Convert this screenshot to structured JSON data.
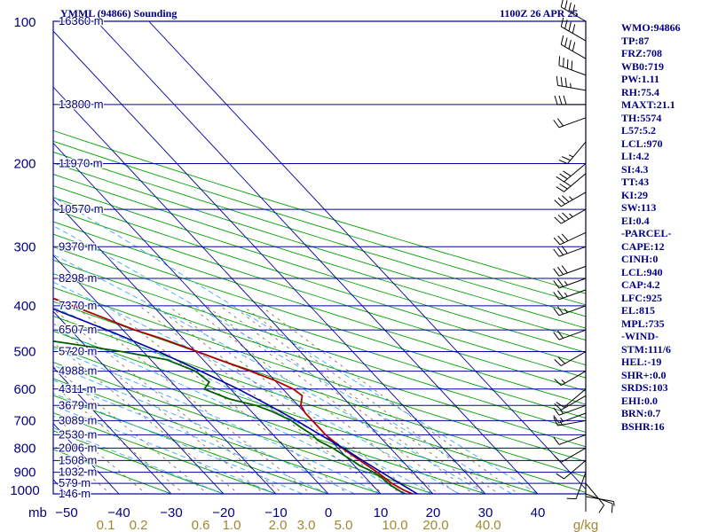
{
  "header": {
    "station": "YMML (94866) Sounding",
    "time": "1100Z 26 APR 25"
  },
  "indices": [
    "WMO:94866",
    "TP:87",
    "FRZ:708",
    "WB0:719",
    "PW:1.11",
    "RH:75.4",
    "MAXT:21.1",
    "TH:5574",
    "L57:5.2",
    "LCL:970",
    "LI:4.2",
    "SI:4.3",
    "TT:43",
    "KI:29",
    "SW:113",
    "EI:0.4",
    "-PARCEL-",
    "CAPE:12",
    "CINH:0",
    "LCL:940",
    "CAP:4.2",
    "LFC:925",
    "EL:815",
    "MPL:735",
    "-WIND-",
    "STM:111/6",
    "HEL:-19",
    "SHR+:0.0",
    "SRDS:103",
    "EHI:0.0",
    "BRN:0.7",
    "BSHR:16"
  ],
  "chart_data": {
    "type": "line",
    "title": "YMML (94866) Sounding",
    "xlabel": "",
    "ylabel": "mb",
    "xlim": [
      -50,
      50
    ],
    "ylim": [
      1000,
      100
    ],
    "x_unit_label": "",
    "pressure_ticks": [
      100,
      200,
      300,
      400,
      500,
      600,
      700,
      800,
      900,
      1000
    ],
    "temp_ticks": [
      -50,
      -40,
      -30,
      -20,
      -10,
      0,
      10,
      20,
      30,
      40
    ],
    "mixing_ratio_ticks": [
      "0.1",
      "0.2",
      "0.6",
      "1.0",
      "2.0",
      "3.0",
      "5.0",
      "10.0",
      "20.0",
      "40.0"
    ],
    "mixing_ratio_unit": "g/kg",
    "height_labels": [
      {
        "p": 100,
        "label": "16360 m"
      },
      {
        "p": 150,
        "label": "13800 m"
      },
      {
        "p": 200,
        "label": "11970 m"
      },
      {
        "p": 250,
        "label": "10570 m"
      },
      {
        "p": 300,
        "label": "9370 m"
      },
      {
        "p": 350,
        "label": "8298 m"
      },
      {
        "p": 400,
        "label": "7370 m"
      },
      {
        "p": 450,
        "label": "6507 m"
      },
      {
        "p": 500,
        "label": "5720 m"
      },
      {
        "p": 550,
        "label": "4988 m"
      },
      {
        "p": 600,
        "label": "4311 m"
      },
      {
        "p": 650,
        "label": "3679 m"
      },
      {
        "p": 700,
        "label": "3089 m"
      },
      {
        "p": 750,
        "label": "2530 m"
      },
      {
        "p": 800,
        "label": "2006 m"
      },
      {
        "p": 850,
        "label": "1508 m"
      },
      {
        "p": 900,
        "label": "1032 m"
      },
      {
        "p": 950,
        "label": "579 m"
      },
      {
        "p": 1000,
        "label": "146 m"
      }
    ],
    "series": [
      {
        "color": "#b00000",
        "points": [
          [
            1013,
            18.6
          ],
          [
            1000,
            16.0
          ],
          [
            980,
            15.0
          ],
          [
            950,
            14.0
          ],
          [
            900,
            13.2
          ],
          [
            850,
            12.0
          ],
          [
            800,
            10.8
          ],
          [
            750,
            10.0
          ],
          [
            700,
            10.0
          ],
          [
            675,
            10.0
          ],
          [
            650,
            10.5
          ],
          [
            620,
            12.5
          ],
          [
            600,
            12.0
          ],
          [
            575,
            10.0
          ],
          [
            550,
            7.0
          ],
          [
            520,
            3.0
          ],
          [
            500,
            0.4
          ],
          [
            470,
            -4.0
          ],
          [
            450,
            -7.7
          ],
          [
            400,
            -15.3
          ],
          [
            350,
            -24.0
          ],
          [
            300,
            -34.0
          ],
          [
            270,
            -41.0
          ],
          [
            250,
            -45.0
          ],
          [
            220,
            -51.5
          ],
          [
            200,
            -55.0
          ],
          [
            190,
            -55.0
          ],
          [
            180,
            -53.0
          ],
          [
            175,
            -51.0
          ],
          [
            170,
            -52.0
          ],
          [
            160,
            -48.5
          ],
          [
            150,
            -49.5
          ],
          [
            140,
            -49.0
          ],
          [
            130,
            -50.0
          ],
          [
            120,
            -51.5
          ],
          [
            110,
            -52.0
          ],
          [
            100,
            -53.0
          ]
        ]
      },
      {
        "color": "#006000",
        "points": [
          [
            1000,
            14.5
          ],
          [
            960,
            13.5
          ],
          [
            920,
            13.0
          ],
          [
            900,
            12.5
          ],
          [
            870,
            11.0
          ],
          [
            850,
            10.5
          ],
          [
            800,
            9.0
          ],
          [
            770,
            7.5
          ],
          [
            750,
            7.5
          ],
          [
            720,
            6.5
          ],
          [
            700,
            6.0
          ],
          [
            670,
            4.0
          ],
          [
            650,
            2.0
          ],
          [
            630,
            -2.0
          ],
          [
            600,
            -5.0
          ],
          [
            580,
            -2.8
          ],
          [
            550,
            -3.5
          ],
          [
            520,
            -7.0
          ],
          [
            500,
            -14.0
          ],
          [
            480,
            -23.0
          ],
          [
            450,
            -38.0
          ],
          [
            420,
            -41.0
          ],
          [
            400,
            -44.0
          ],
          [
            350,
            -51.0
          ],
          [
            320,
            -56.0
          ],
          [
            300,
            -61.0
          ],
          [
            280,
            -70.0
          ],
          [
            260,
            -71.0
          ],
          [
            240,
            -72.0
          ],
          [
            220,
            -72.0
          ],
          [
            210,
            -71.0
          ],
          [
            200,
            -74.0
          ],
          [
            190,
            -77.0
          ],
          [
            180,
            -79.0
          ],
          [
            170,
            -80.0
          ],
          [
            160,
            -81.0
          ],
          [
            150,
            -83.0
          ],
          [
            140,
            -85.0
          ],
          [
            130,
            -88.0
          ],
          [
            120,
            -92.0
          ],
          [
            110,
            -96.0
          ],
          [
            100,
            -100.0
          ]
        ]
      },
      {
        "color": "#0000a0",
        "points": [
          [
            1013,
            18.6
          ],
          [
            1000,
            17.0
          ],
          [
            950,
            15.5
          ],
          [
            900,
            14.0
          ],
          [
            850,
            12.5
          ],
          [
            800,
            11.0
          ],
          [
            750,
            9.0
          ],
          [
            700,
            7.0
          ],
          [
            650,
            4.5
          ],
          [
            600,
            1.5
          ],
          [
            550,
            -2.5
          ],
          [
            500,
            -7.0
          ],
          [
            450,
            -13.0
          ],
          [
            400,
            -20.5
          ],
          [
            350,
            -29.0
          ],
          [
            300,
            -39.0
          ],
          [
            250,
            -50.0
          ],
          [
            200,
            -63.0
          ],
          [
            150,
            -78.0
          ],
          [
            100,
            -98.0
          ]
        ]
      }
    ],
    "wind_barbs": [
      {
        "p": 1013,
        "dir": 100,
        "spd": 5
      },
      {
        "p": 1000,
        "dir": 110,
        "spd": 10
      },
      {
        "p": 950,
        "dir": 140,
        "spd": 10
      },
      {
        "p": 900,
        "dir": 200,
        "spd": 10
      },
      {
        "p": 850,
        "dir": 230,
        "spd": 10
      },
      {
        "p": 800,
        "dir": 240,
        "spd": 10
      },
      {
        "p": 750,
        "dir": 250,
        "spd": 10
      },
      {
        "p": 700,
        "dir": 260,
        "spd": 15
      },
      {
        "p": 675,
        "dir": 250,
        "spd": 15
      },
      {
        "p": 650,
        "dir": 250,
        "spd": 15
      },
      {
        "p": 620,
        "dir": 240,
        "spd": 10
      },
      {
        "p": 600,
        "dir": 230,
        "spd": 10
      },
      {
        "p": 550,
        "dir": 240,
        "spd": 15
      },
      {
        "p": 500,
        "dir": 240,
        "spd": 20
      },
      {
        "p": 450,
        "dir": 250,
        "spd": 20
      },
      {
        "p": 400,
        "dir": 250,
        "spd": 25
      },
      {
        "p": 370,
        "dir": 250,
        "spd": 25
      },
      {
        "p": 350,
        "dir": 250,
        "spd": 25
      },
      {
        "p": 330,
        "dir": 250,
        "spd": 30
      },
      {
        "p": 300,
        "dir": 250,
        "spd": 30
      },
      {
        "p": 280,
        "dir": 245,
        "spd": 30
      },
      {
        "p": 250,
        "dir": 240,
        "spd": 35
      },
      {
        "p": 230,
        "dir": 240,
        "spd": 35
      },
      {
        "p": 210,
        "dir": 230,
        "spd": 30
      },
      {
        "p": 200,
        "dir": 230,
        "spd": 30
      },
      {
        "p": 180,
        "dir": 220,
        "spd": 25
      },
      {
        "p": 160,
        "dir": 250,
        "spd": 20
      },
      {
        "p": 150,
        "dir": 270,
        "spd": 30
      },
      {
        "p": 140,
        "dir": 280,
        "spd": 35
      },
      {
        "p": 130,
        "dir": 290,
        "spd": 40
      },
      {
        "p": 120,
        "dir": 300,
        "spd": 40
      },
      {
        "p": 110,
        "dir": 300,
        "spd": 40
      },
      {
        "p": 100,
        "dir": 300,
        "spd": 40
      }
    ],
    "colors": {
      "isobar": "#0000a0",
      "isotherm": "#0000a0",
      "dry_adiabat": "#00a000",
      "moist_adiabat": "#38a8ff",
      "mixing_ratio": "#806040",
      "temperature": "#b00000",
      "dewpoint": "#006000",
      "parcel": "#0000a0",
      "text": "#000080",
      "barb": "#000000"
    },
    "grid": true
  }
}
